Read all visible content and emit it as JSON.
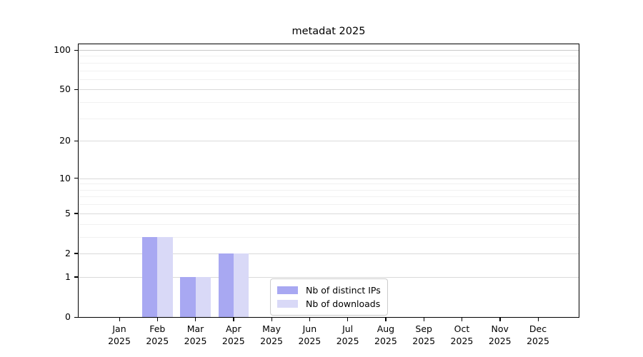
{
  "title": "metadat 2025",
  "chart_data": {
    "type": "bar",
    "title": "metadat 2025",
    "categories": [
      "Jan",
      "Feb",
      "Mar",
      "Apr",
      "May",
      "Jun",
      "Jul",
      "Aug",
      "Sep",
      "Oct",
      "Nov",
      "Dec"
    ],
    "category_year": "2025",
    "series": [
      {
        "name": "Nb of distinct IPs",
        "color": "#a8a8f2",
        "values": [
          0,
          3,
          1,
          2,
          0,
          0,
          0,
          0,
          0,
          0,
          0,
          0
        ]
      },
      {
        "name": "Nb of downloads",
        "color": "#d9d9f7",
        "values": [
          0,
          3,
          1,
          2,
          0,
          0,
          0,
          0,
          0,
          0,
          0,
          0
        ]
      }
    ],
    "xlabel": "",
    "ylabel": "",
    "y_scale": "log1p",
    "ylim": [
      0,
      110
    ],
    "y_major_ticks": [
      0,
      1,
      2,
      5,
      10,
      20,
      50,
      100
    ],
    "y_minor_gridlines": [
      3,
      4,
      6,
      7,
      8,
      9,
      30,
      40,
      60,
      70,
      80,
      90
    ],
    "grid": true,
    "legend": {
      "position": "lower center",
      "entries": [
        "Nb of distinct IPs",
        "Nb of downloads"
      ]
    }
  },
  "colors": {
    "background": "#ffffff",
    "bar_distinct_ips": "#a8a8f2",
    "bar_downloads": "#d9d9f7",
    "grid_major": "#dadada",
    "grid_minor": "#f1f1f1",
    "grid_top_line": "#c9c9c9",
    "axis": "#000000",
    "legend_border": "#cccccc",
    "text": "#000000"
  }
}
